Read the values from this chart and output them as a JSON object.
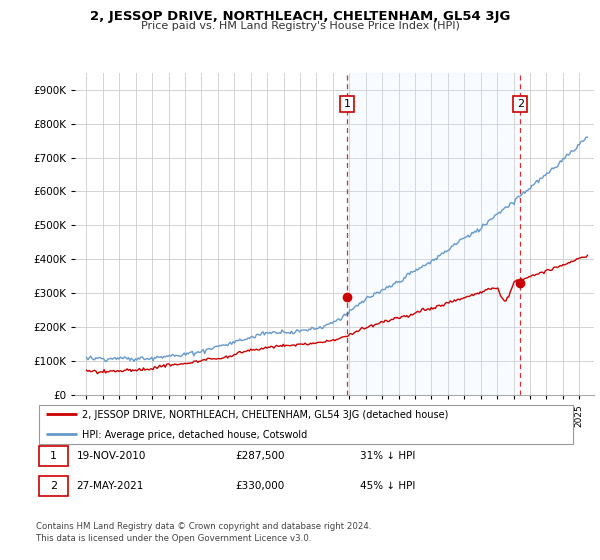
{
  "title": "2, JESSOP DRIVE, NORTHLEACH, CHELTENHAM, GL54 3JG",
  "subtitle": "Price paid vs. HM Land Registry's House Price Index (HPI)",
  "red_label": "2, JESSOP DRIVE, NORTHLEACH, CHELTENHAM, GL54 3JG (detached house)",
  "blue_label": "HPI: Average price, detached house, Cotswold",
  "marker1_date": "19-NOV-2010",
  "marker1_price": 287500,
  "marker1_pct": "31% ↓ HPI",
  "marker2_date": "27-MAY-2021",
  "marker2_price": 330000,
  "marker2_pct": "45% ↓ HPI",
  "footnote": "Contains HM Land Registry data © Crown copyright and database right 2024.\nThis data is licensed under the Open Government Licence v3.0.",
  "yticks": [
    0,
    100000,
    200000,
    300000,
    400000,
    500000,
    600000,
    700000,
    800000,
    900000
  ],
  "red_color": "#cc0000",
  "blue_color": "#6699cc",
  "shade_color": "#ddeeff",
  "marker1_year": 2010.88,
  "marker2_year": 2021.41,
  "grid_color": "#cccccc",
  "border_color": "#aaaaaa"
}
